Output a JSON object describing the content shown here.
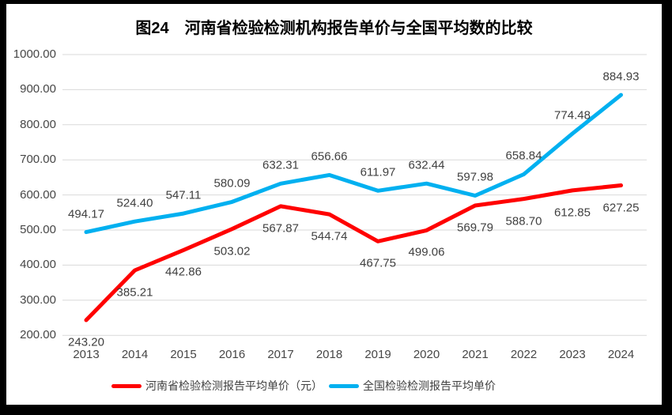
{
  "title": "图24　河南省检验检测机构报告单价与全国平均数的比较",
  "chart_data": {
    "type": "line",
    "categories": [
      "2013",
      "2014",
      "2015",
      "2016",
      "2017",
      "2018",
      "2019",
      "2020",
      "2021",
      "2022",
      "2023",
      "2024"
    ],
    "series": [
      {
        "name": "河南省检验检测报告平均单价（元）",
        "color": "#FF0000",
        "label_position": "below",
        "values": [
          243.2,
          385.21,
          442.86,
          503.02,
          567.87,
          544.74,
          467.75,
          499.06,
          569.79,
          588.7,
          612.85,
          627.25
        ]
      },
      {
        "name": "全国检验检测报告平均单价",
        "color": "#00B0F0",
        "label_position": "above",
        "values": [
          494.17,
          524.4,
          547.11,
          580.09,
          632.31,
          656.66,
          611.97,
          632.44,
          597.98,
          658.84,
          774.48,
          884.93
        ]
      }
    ],
    "ylim": [
      200,
      1000
    ],
    "ytick_step": 100,
    "value_decimals": 2,
    "grid": true,
    "legend_position": "bottom",
    "colors": {
      "grid": "#D9D9D9",
      "axis_text": "#464646",
      "label_text": "#404040",
      "title_text": "#000000",
      "frame_border": "#000000",
      "background": "#FFFFFF"
    }
  }
}
